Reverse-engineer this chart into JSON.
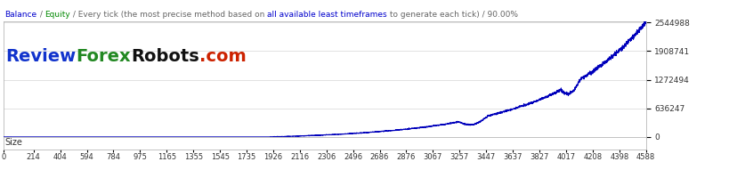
{
  "title_segments": [
    {
      "text": "Balance",
      "color": "#0000cc"
    },
    {
      "text": " / ",
      "color": "#666666"
    },
    {
      "text": "Equity",
      "color": "#008800"
    },
    {
      "text": " / Every tick (the most precise method based on ",
      "color": "#666666"
    },
    {
      "text": "all available least timeframes",
      "color": "#0000cc"
    },
    {
      "text": " to generate each tick) / 90.00%",
      "color": "#666666"
    }
  ],
  "watermark_segments": [
    {
      "text": "Review",
      "color": "#1133cc"
    },
    {
      "text": "Forex",
      "color": "#228822"
    },
    {
      "text": "Robots",
      "color": "#111111"
    },
    {
      "text": ".com",
      "color": "#cc2200"
    }
  ],
  "size_label": "Size",
  "x_ticks": [
    0,
    214,
    404,
    594,
    784,
    975,
    1165,
    1355,
    1545,
    1735,
    1926,
    2116,
    2306,
    2496,
    2686,
    2876,
    3067,
    3257,
    3447,
    3637,
    3827,
    4017,
    4208,
    4398,
    4588
  ],
  "y_ticks": [
    0,
    636247,
    1272494,
    1908741,
    2544988
  ],
  "y_max": 2544988,
  "y_min": 0,
  "x_min": 0,
  "x_max": 4588,
  "line_color": "#0000bb",
  "background_color": "#ffffff",
  "plot_bg_color": "#ffffff",
  "grid_color": "#cccccc",
  "title_fontsize": 6.5,
  "watermark_fontsize": 14,
  "ytick_fontsize": 6.5,
  "xtick_fontsize": 6.0
}
